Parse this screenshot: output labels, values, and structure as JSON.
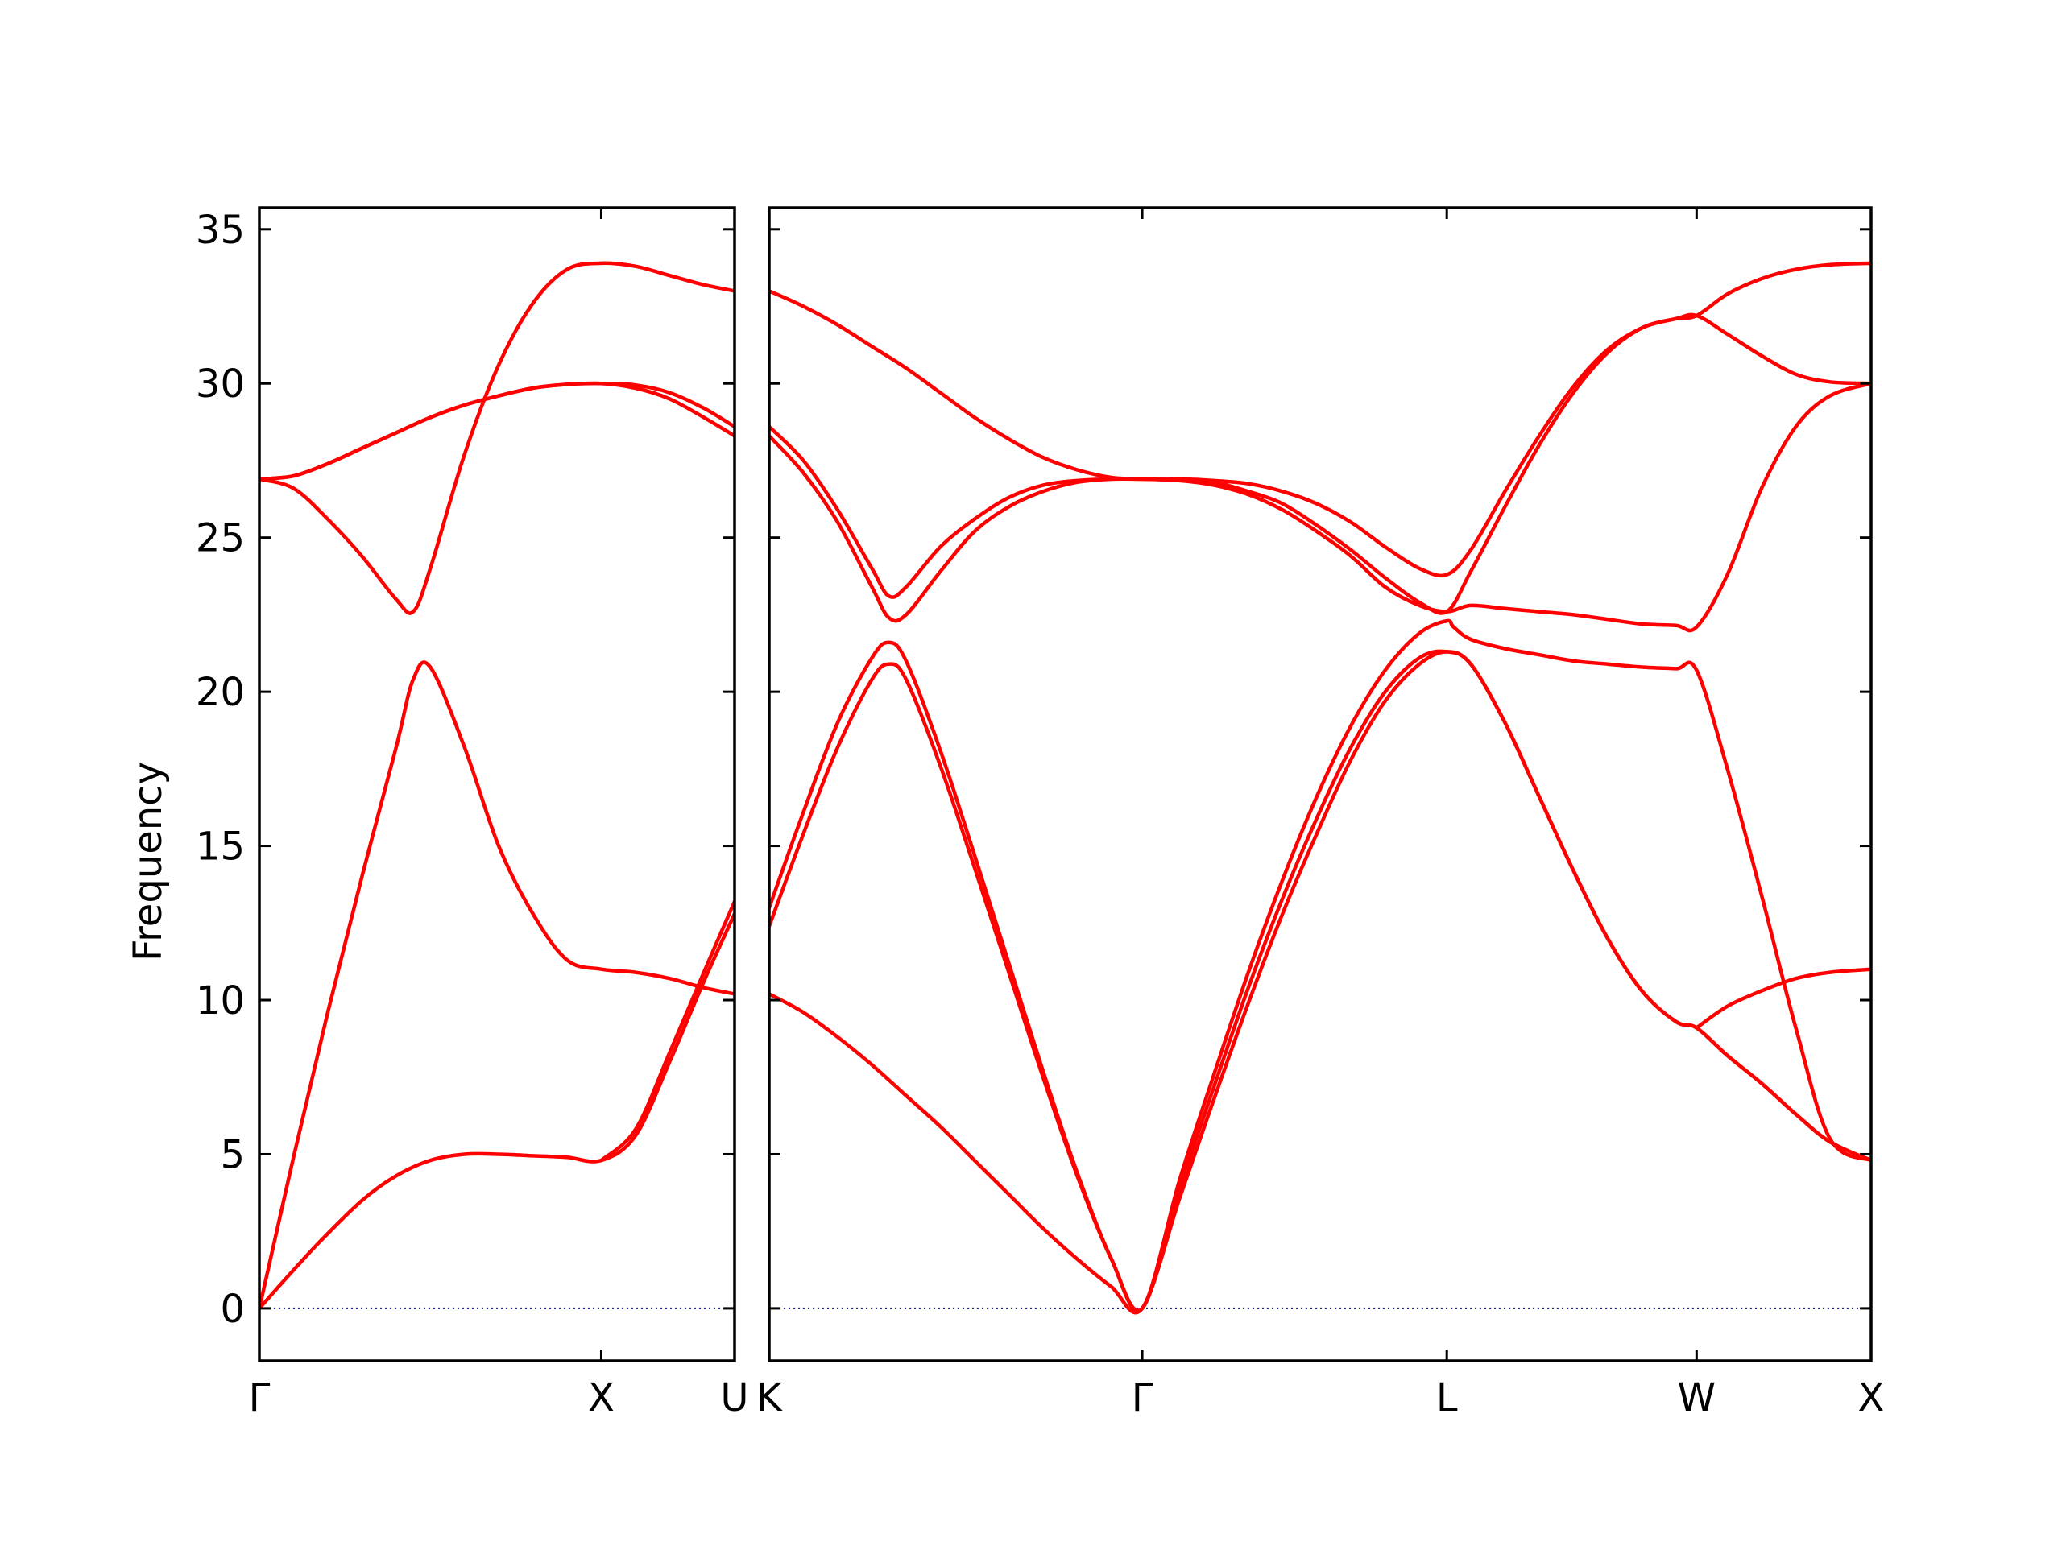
{
  "chart_data": {
    "type": "line",
    "title": "",
    "xlabel": "",
    "ylabel": "Frequency",
    "ylim": [
      -1.7,
      35.7
    ],
    "yticks": [
      0,
      5,
      10,
      15,
      20,
      25,
      30,
      35
    ],
    "grid": false,
    "legend": "none",
    "colors": {
      "band": "#ff0000",
      "zero_line": "#00008b",
      "axes": "#000000"
    },
    "panels": [
      {
        "name": "gamma-x-u",
        "xlim": [
          0,
          1.39
        ],
        "kpoints": [
          {
            "label": "Γ",
            "x": 0
          },
          {
            "label": "X",
            "x": 1.0
          },
          {
            "label": "U",
            "x": 1.39
          }
        ],
        "series": [
          {
            "x": [
              0,
              0.08,
              0.18,
              0.3,
              0.4,
              0.5,
              0.6,
              0.7,
              0.8,
              0.9,
              1.0,
              1.1,
              1.2,
              1.3,
              1.39
            ],
            "y": [
              0,
              1.0,
              2.2,
              3.5,
              4.3,
              4.8,
              5.0,
              5.0,
              4.95,
              4.9,
              4.8,
              5.6,
              8.0,
              10.6,
              12.8
            ]
          },
          {
            "x": [
              0,
              0.1,
              0.2,
              0.3,
              0.4,
              0.45,
              0.5,
              0.6,
              0.7,
              0.8,
              0.9,
              1.0,
              1.1,
              1.2,
              1.3,
              1.39
            ],
            "y": [
              0,
              4.9,
              9.6,
              14.0,
              18.2,
              20.4,
              20.8,
              18.2,
              15.0,
              12.8,
              11.3,
              11.0,
              10.9,
              10.7,
              10.4,
              10.2
            ]
          },
          {
            "x": [
              0,
              0.1,
              0.2,
              0.3,
              0.4,
              0.45,
              0.5,
              0.6,
              0.7,
              0.8,
              0.9,
              1.0,
              1.1,
              1.2,
              1.3,
              1.39
            ],
            "y": [
              26.9,
              26.6,
              25.6,
              24.4,
              23.0,
              22.6,
              24.0,
              27.7,
              30.6,
              32.6,
              33.7,
              33.9,
              33.8,
              33.5,
              33.2,
              33.0
            ]
          },
          {
            "x": [
              0,
              0.1,
              0.2,
              0.3,
              0.4,
              0.5,
              0.6,
              0.7,
              0.8,
              0.9,
              1.0,
              1.1,
              1.2,
              1.3,
              1.39
            ],
            "y": [
              26.9,
              27.0,
              27.4,
              27.9,
              28.4,
              28.9,
              29.3,
              29.6,
              29.85,
              29.97,
              30.0,
              29.95,
              29.7,
              29.2,
              28.6
            ]
          },
          {
            "x": [
              0,
              0.1,
              0.2,
              0.3,
              0.4,
              0.5,
              0.6,
              0.7,
              0.8,
              0.9,
              1.0,
              1.1,
              1.2,
              1.3,
              1.39
            ],
            "y": [
              26.9,
              27.0,
              27.4,
              27.9,
              28.4,
              28.9,
              29.3,
              29.6,
              29.85,
              29.97,
              30.0,
              29.85,
              29.5,
              28.9,
              28.3
            ]
          },
          {
            "x": [
              1.0,
              1.1,
              1.2,
              1.3,
              1.39
            ],
            "y": [
              4.8,
              5.8,
              8.3,
              10.9,
              13.2
            ]
          }
        ]
      },
      {
        "name": "k-gamma-l-w-x",
        "xlim": [
          0,
          3.22
        ],
        "kpoints": [
          {
            "label": "K",
            "x": 0
          },
          {
            "label": "Γ",
            "x": 1.09
          },
          {
            "label": "L",
            "x": 1.98
          },
          {
            "label": "W",
            "x": 2.71
          },
          {
            "label": "X",
            "x": 3.22
          }
        ],
        "series": [
          {
            "x": [
              0,
              0.1,
              0.2,
              0.3,
              0.4,
              0.5,
              0.6,
              0.7,
              0.8,
              0.9,
              1.0,
              1.09,
              1.2,
              1.3,
              1.4,
              1.5,
              1.6,
              1.7,
              1.8,
              1.9,
              1.98,
              2.05,
              2.15,
              2.25,
              2.35,
              2.45,
              2.55,
              2.65,
              2.71,
              2.8,
              2.9,
              3.0,
              3.1,
              3.22
            ],
            "y": [
              10.2,
              9.6,
              8.8,
              7.9,
              6.9,
              5.9,
              4.8,
              3.7,
              2.6,
              1.6,
              0.7,
              0,
              3.6,
              6.8,
              9.9,
              12.8,
              15.4,
              17.8,
              19.7,
              20.9,
              21.3,
              20.9,
              19.0,
              16.6,
              14.2,
              12.0,
              10.3,
              9.3,
              9.1,
              8.2,
              7.3,
              6.3,
              5.4,
              4.8
            ]
          },
          {
            "x": [
              0,
              0.1,
              0.2,
              0.3,
              0.35,
              0.4,
              0.5,
              0.6,
              0.7,
              0.8,
              0.9,
              1.0,
              1.09,
              1.2,
              1.3,
              1.4,
              1.5,
              1.6,
              1.7,
              1.8,
              1.9,
              1.98,
              2.05,
              2.15,
              2.25,
              2.35,
              2.45,
              2.55,
              2.65,
              2.71,
              2.8,
              2.9,
              3.0,
              3.1,
              3.22
            ],
            "y": [
              12.4,
              15.4,
              18.2,
              20.4,
              20.9,
              20.4,
              17.6,
              14.3,
              10.9,
              7.5,
              4.3,
              1.6,
              0,
              3.9,
              7.2,
              10.4,
              13.3,
              15.9,
              18.2,
              20.0,
              21.1,
              21.3,
              20.9,
              19.0,
              16.6,
              14.2,
              12.0,
              10.3,
              9.3,
              9.1,
              8.2,
              7.3,
              6.3,
              5.4,
              4.8
            ]
          },
          {
            "x": [
              0,
              0.1,
              0.2,
              0.3,
              0.35,
              0.4,
              0.5,
              0.6,
              0.7,
              0.8,
              0.9,
              1.0,
              1.09,
              1.2,
              1.3,
              1.4,
              1.5,
              1.6,
              1.7,
              1.8,
              1.9,
              1.98,
              2.0,
              2.05,
              2.15,
              2.25,
              2.35,
              2.45,
              2.55,
              2.65,
              2.71,
              2.8,
              2.9,
              3.0,
              3.1,
              3.22
            ],
            "y": [
              13.0,
              16.1,
              19.0,
              21.1,
              21.6,
              21.0,
              18.1,
              14.7,
              11.2,
              7.7,
              4.4,
              1.6,
              0,
              4.2,
              7.6,
              10.9,
              13.9,
              16.6,
              18.9,
              20.7,
              21.9,
              22.3,
              22.1,
              21.7,
              21.4,
              21.2,
              21.0,
              20.9,
              20.8,
              20.75,
              20.7,
              17.5,
              13.4,
              9.1,
              5.5,
              4.8
            ]
          },
          {
            "x": [
              0,
              0.1,
              0.2,
              0.3,
              0.35,
              0.4,
              0.5,
              0.6,
              0.7,
              0.8,
              0.9,
              1.0,
              1.09,
              1.2,
              1.3,
              1.4,
              1.5,
              1.6,
              1.7,
              1.8,
              1.9,
              1.98,
              2.05,
              2.15,
              2.25,
              2.35,
              2.45,
              2.55,
              2.65,
              2.71,
              2.8,
              2.9,
              3.0,
              3.1,
              3.22
            ],
            "y": [
              28.3,
              27.1,
              25.5,
              23.4,
              22.4,
              22.5,
              23.9,
              25.2,
              26.0,
              26.5,
              26.8,
              26.9,
              26.9,
              26.85,
              26.7,
              26.4,
              25.9,
              25.2,
              24.4,
              23.4,
              22.8,
              22.6,
              22.8,
              22.7,
              22.6,
              22.5,
              22.35,
              22.2,
              22.15,
              22.1,
              23.8,
              26.6,
              28.6,
              29.6,
              30.0
            ]
          },
          {
            "x": [
              0,
              0.1,
              0.2,
              0.3,
              0.35,
              0.4,
              0.5,
              0.6,
              0.7,
              0.8,
              0.9,
              1.0,
              1.09,
              1.2,
              1.3,
              1.4,
              1.5,
              1.6,
              1.7,
              1.8,
              1.9,
              1.98,
              2.05,
              2.15,
              2.25,
              2.35,
              2.45,
              2.55,
              2.65,
              2.71,
              2.8,
              2.9,
              3.0,
              3.1,
              3.22
            ],
            "y": [
              28.6,
              27.5,
              25.9,
              24.0,
              23.1,
              23.4,
              24.7,
              25.6,
              26.3,
              26.7,
              26.85,
              26.9,
              26.9,
              26.9,
              26.8,
              26.5,
              26.1,
              25.4,
              24.6,
              23.7,
              22.9,
              22.6,
              23.9,
              26.0,
              28.0,
              29.7,
              31.0,
              31.8,
              32.1,
              32.2,
              32.9,
              33.4,
              33.7,
              33.85,
              33.9
            ]
          },
          {
            "x": [
              0,
              0.1,
              0.2,
              0.3,
              0.4,
              0.5,
              0.6,
              0.7,
              0.8,
              0.9,
              1.0,
              1.09,
              1.2,
              1.3,
              1.4,
              1.5,
              1.6,
              1.7,
              1.8,
              1.9,
              1.98,
              2.05,
              2.15,
              2.25,
              2.35,
              2.45,
              2.55,
              2.65,
              2.71,
              2.8,
              2.9,
              3.0,
              3.1,
              3.22
            ],
            "y": [
              33.0,
              32.5,
              31.9,
              31.2,
              30.5,
              29.7,
              28.9,
              28.2,
              27.6,
              27.2,
              26.95,
              26.9,
              26.9,
              26.85,
              26.75,
              26.5,
              26.1,
              25.5,
              24.7,
              24.0,
              23.8,
              24.6,
              26.5,
              28.3,
              29.9,
              31.1,
              31.8,
              32.1,
              32.2,
              31.6,
              30.9,
              30.3,
              30.05,
              30.0
            ]
          },
          {
            "x": [
              2.71,
              2.8,
              2.9,
              3.0,
              3.1,
              3.22
            ],
            "y": [
              9.1,
              9.8,
              10.3,
              10.7,
              10.9,
              11.0
            ]
          }
        ]
      }
    ]
  }
}
